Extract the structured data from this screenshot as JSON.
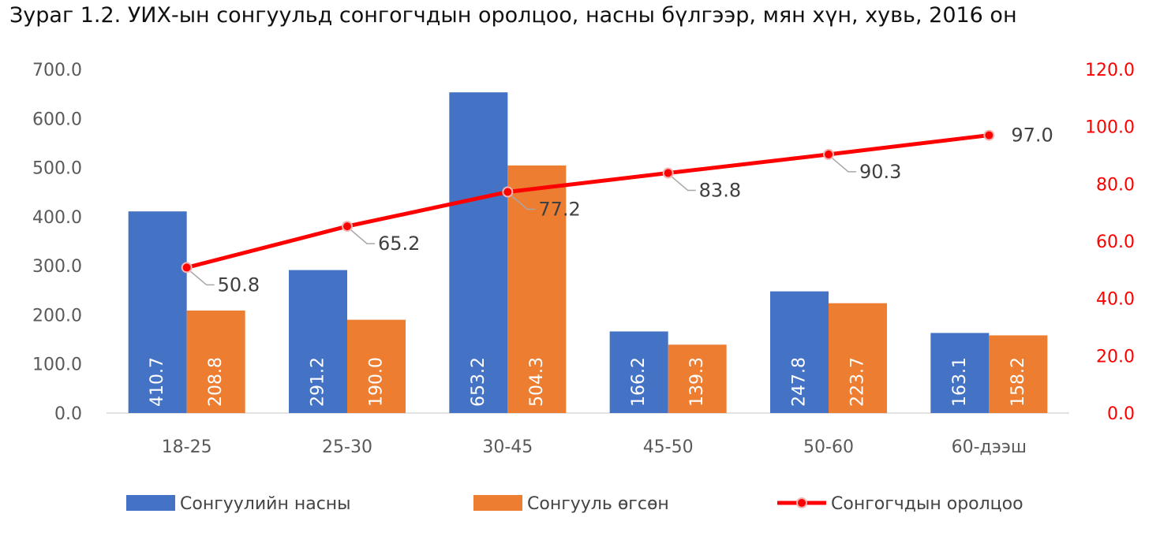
{
  "chart_data": {
    "type": "bar",
    "title": "Зураг 1.2. УИХ-ын сонгуульд сонгогчдын оролцоо, насны бүлгээр, мян хүн, хувь, 2016 он",
    "categories": [
      "18-25",
      "25-30",
      "30-45",
      "45-50",
      "50-60",
      "60-дээш"
    ],
    "series": [
      {
        "name": "Сонгуулийн насны",
        "type": "bar",
        "axis": "left",
        "color": "#4472C4",
        "values": [
          410.7,
          291.2,
          653.2,
          166.2,
          247.8,
          163.1
        ],
        "labels": [
          "410.7",
          "291.2",
          "653.2",
          "166.2",
          "247.8",
          "163.1"
        ]
      },
      {
        "name": "Сонгууль өгсөн",
        "type": "bar",
        "axis": "left",
        "color": "#ED7D31",
        "values": [
          208.8,
          190.0,
          504.3,
          139.3,
          223.7,
          158.2
        ],
        "labels": [
          "208.8",
          "190.0",
          "504.3",
          "139.3",
          "223.7",
          "158.2"
        ]
      },
      {
        "name": "Сонгогчдын оролцоо",
        "type": "line",
        "axis": "right",
        "color": "#FF0000",
        "values": [
          50.8,
          65.2,
          77.2,
          83.8,
          90.3,
          97.0
        ],
        "labels": [
          "50.8",
          "65.2",
          "77.2",
          "83.8",
          "90.3",
          "97.0"
        ]
      }
    ],
    "y_left": {
      "min": 0,
      "max": 700,
      "ticks": [
        "0.0",
        "100.0",
        "200.0",
        "300.0",
        "400.0",
        "500.0",
        "600.0",
        "700.0"
      ],
      "color": "#595959"
    },
    "y_right": {
      "min": 0,
      "max": 120,
      "ticks": [
        "0.0",
        "20.0",
        "40.0",
        "60.0",
        "80.0",
        "100.0",
        "120.0"
      ],
      "color": "#FF0000"
    },
    "grid": false,
    "legend_position": "bottom"
  }
}
